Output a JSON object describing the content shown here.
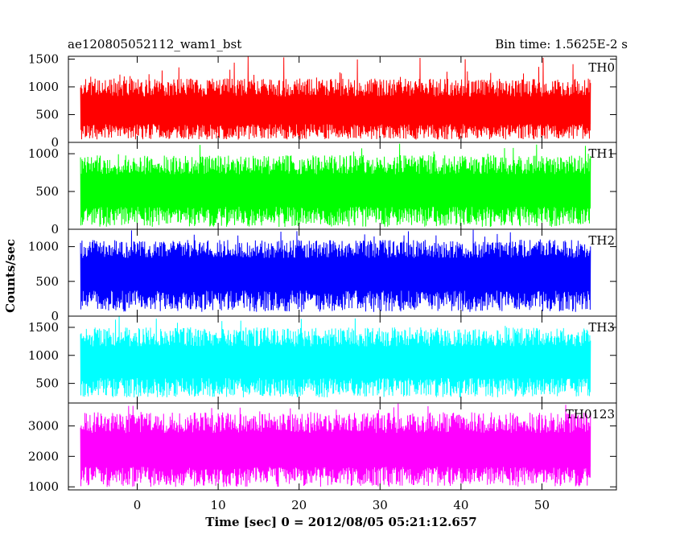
{
  "chart_data": {
    "type": "line",
    "title": "ae120805052112_wam1_bst",
    "subtitle": "Bin time: 1.5625E-2 s",
    "xlabel": "Time [sec] 0 = 2012/08/05 05:21:12.657",
    "ylabel": "Counts/sec",
    "xlim": [
      -8.5,
      59.2
    ],
    "x_ticks": [
      0,
      10,
      20,
      30,
      40,
      50
    ],
    "x_tick_labels": [
      "0",
      "10",
      "20",
      "30",
      "40",
      "50"
    ],
    "data_x_range": [
      -7.0,
      56.0
    ],
    "grid": false,
    "legend": "none",
    "panels": [
      {
        "name": "TH0",
        "color": "#ff0000",
        "ylim": [
          0,
          1550
        ],
        "y_ticks": [
          0,
          500,
          1000,
          1500
        ],
        "y_tick_labels": [
          "0",
          "500",
          "1000",
          "1500"
        ],
        "baseline": 560,
        "low": 50,
        "high": 1150,
        "spike_max": 1550
      },
      {
        "name": "TH1",
        "color": "#00ff00",
        "ylim": [
          0,
          1150
        ],
        "y_ticks": [
          0,
          500,
          1000
        ],
        "y_tick_labels": [
          "0",
          "500",
          "1000"
        ],
        "baseline": 520,
        "low": 30,
        "high": 980,
        "spike_max": 1150
      },
      {
        "name": "TH2",
        "color": "#0000ff",
        "ylim": [
          0,
          1250
        ],
        "y_ticks": [
          0,
          500,
          1000
        ],
        "y_tick_labels": [
          "0",
          "500",
          "1000"
        ],
        "baseline": 620,
        "low": 60,
        "high": 1100,
        "spike_max": 1250
      },
      {
        "name": "TH3",
        "color": "#00ffff",
        "ylim": [
          150,
          1700
        ],
        "y_ticks": [
          500,
          1000,
          1500
        ],
        "y_tick_labels": [
          "500",
          "1000",
          "1500"
        ],
        "baseline": 880,
        "low": 250,
        "high": 1500,
        "spike_max": 1700
      },
      {
        "name": "TH0123",
        "color": "#ff00ff",
        "ylim": [
          900,
          3750
        ],
        "y_ticks": [
          1000,
          2000,
          3000
        ],
        "y_tick_labels": [
          "1000",
          "2000",
          "3000"
        ],
        "baseline": 2200,
        "low": 1000,
        "high": 3450,
        "spike_max": 3750
      }
    ]
  }
}
